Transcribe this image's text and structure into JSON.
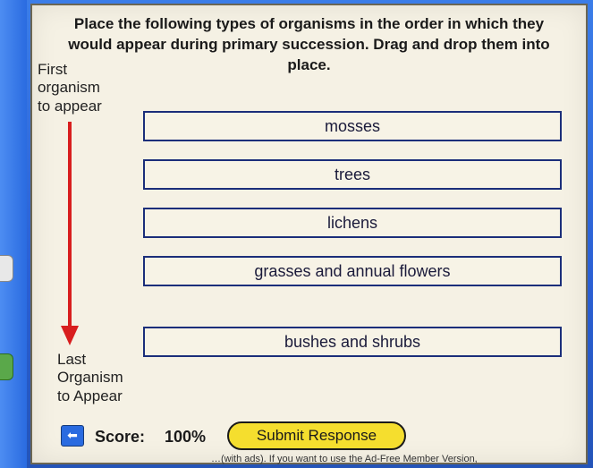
{
  "instructions": "Place the following types of organisms in the order in which they would appear during primary succession.  Drag and drop them into place.",
  "first_label_l1": "First",
  "first_label_l2": "organism",
  "first_label_l3": "to appear",
  "last_label_l1": "Last",
  "last_label_l2": "Organism",
  "last_label_l3": "to Appear",
  "items": {
    "0": "mosses",
    "1": "trees",
    "2": "lichens",
    "3": "grasses and annual flowers",
    "4": "bushes and shrubs"
  },
  "score_label": "Score:",
  "score_value": "100%",
  "submit_label": "Submit Response",
  "back_glyph": "⬅",
  "footer_text": "…(with ads). If you want to use the Ad-Free Member Version,",
  "colors": {
    "panel_bg": "#f5f1e4",
    "slot_border": "#1b2e7a",
    "arrow": "#d81e1e",
    "submit_bg": "#f5de2e",
    "desktop_top": "#3b7de8",
    "desktop_bottom": "#2454b8"
  }
}
